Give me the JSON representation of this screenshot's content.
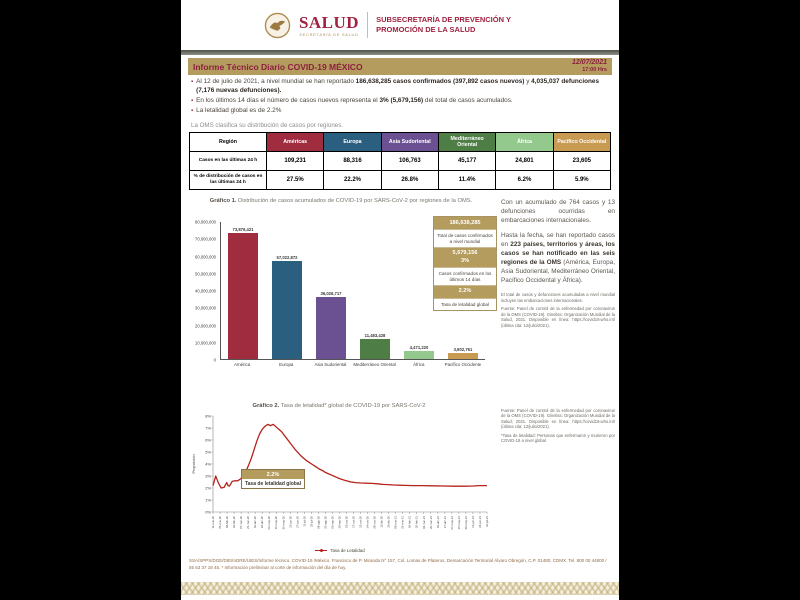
{
  "header": {
    "brand": "SALUD",
    "brand_sub": "SECRETARÍA DE SALUD",
    "dept": "SUBSECRETARÍA DE PREVENCIÓN Y PROMOCIÓN DE LA SALUD"
  },
  "title_bar": {
    "title": "Informe Técnico Diario COVID-19 MÉXICO",
    "date": "12/07/2021",
    "time": "17:00 Hrs"
  },
  "bullets": [
    [
      {
        "t": "Al 12 de julio de 2021, a nivel mundial se han reportado ",
        "b": false
      },
      {
        "t": "186,638,285 casos confirmados (397,892 casos nuevos)",
        "b": true
      },
      {
        "t": " y ",
        "b": false
      },
      {
        "t": "4,035,037 defunciones (7,176 nuevas defunciones).",
        "b": true
      }
    ],
    [
      {
        "t": "En los últimos 14 días el número de casos nuevos representa el ",
        "b": false
      },
      {
        "t": "3% (5,679,156)",
        "b": true
      },
      {
        "t": " del total de casos acumulados.",
        "b": false
      }
    ],
    [
      {
        "t": "La letalidad global es de 2.2%",
        "b": false
      }
    ]
  ],
  "table": {
    "intro": "La OMS clasifica su distribución de casos por regiones.",
    "columns": [
      {
        "label": "Región",
        "bg": "#ffffff",
        "fg": "#000000"
      },
      {
        "label": "Américas",
        "bg": "#a02c3f",
        "fg": "#ffffff"
      },
      {
        "label": "Europa",
        "bg": "#2a5f7f",
        "fg": "#ffffff"
      },
      {
        "label": "Asia Sudoriental",
        "bg": "#6b5092",
        "fg": "#ffffff"
      },
      {
        "label": "Mediterráneo Oriental",
        "bg": "#4e7d46",
        "fg": "#ffffff"
      },
      {
        "label": "África",
        "bg": "#94c98e",
        "fg": "#ffffff"
      },
      {
        "label": "Pacífico Occidental",
        "bg": "#c89a52",
        "fg": "#ffffff"
      }
    ],
    "rows": [
      {
        "label": "Casos en las últimas 24 h",
        "values": [
          "109,231",
          "88,316",
          "106,763",
          "45,177",
          "24,801",
          "23,605"
        ]
      },
      {
        "label": "% de distribución de casos en las últimas 24 h",
        "values": [
          "27.5%",
          "22.2%",
          "26.8%",
          "11.4%",
          "6.2%",
          "5.9%"
        ]
      }
    ]
  },
  "chart_data": [
    {
      "type": "bar",
      "title_label": "Gráfico 1.",
      "title": " Distribución de casos acumulados de COVID-19 por SARS-CoV-2 por regiones de la OMS.",
      "categories": [
        "América",
        "Europa",
        "Asia Sudoriental",
        "Mediterráneo Oriental",
        "África",
        "Pacífico Occidente"
      ],
      "values": [
        73876421,
        57022872,
        36026717,
        11483428,
        4471220,
        3802761
      ],
      "value_labels": [
        "73,876,421",
        "57,022,872",
        "36,026,717",
        "11,483,428",
        "4,471,220",
        "3,802,761"
      ],
      "colors": [
        "#a02c3f",
        "#2a5f7f",
        "#6b5092",
        "#4e7d46",
        "#94c98e",
        "#c89a52"
      ],
      "ylim": [
        0,
        80000000
      ],
      "yticks": [
        "80,000,000",
        "70,000,000",
        "60,000,000",
        "50,000,000",
        "40,000,000",
        "30,000,000",
        "20,000,000",
        "10,000,000",
        "0"
      ],
      "grid": false,
      "legend_position": "none"
    },
    {
      "type": "line",
      "title_label": "Gráfico 2.",
      "title": " Tasa de letalidad* global de COVID-19 por SARS-CoV-2",
      "ylabel": "Proporción",
      "ylim": [
        0,
        8
      ],
      "yticks": [
        "8%",
        "7%",
        "6%",
        "5%",
        "4%",
        "3%",
        "2%",
        "1%",
        "0%"
      ],
      "x_ticks": [
        "11-ene-20",
        "25-ene-20",
        "08-feb-20",
        "22-feb-20",
        "07-mar-20",
        "21-mar-20",
        "04-abr-20",
        "18-abr-20",
        "02-may-20",
        "16-may-20",
        "30-may-20",
        "13-jun-20",
        "27-jun-20",
        "11-jul-20",
        "25-jul-20",
        "08-ago-20",
        "22-ago-20",
        "05-sep-20",
        "19-sep-20",
        "03-oct-20",
        "17-oct-20",
        "31-oct-20",
        "14-nov-20",
        "28-nov-20",
        "12-dic-20",
        "26-dic-20",
        "09-ene-21",
        "23-ene-21",
        "06-feb-21",
        "20-feb-21",
        "06-mar-21",
        "20-mar-21",
        "03-abr-21",
        "17-abr-21",
        "01-may-21",
        "15-may-21",
        "29-may-21",
        "12-jun-21",
        "26-jun-21",
        "10-jul-21"
      ],
      "legend": "Tasa de Letalidad",
      "legend_position": "bottom",
      "grid": false,
      "annotation": {
        "value": "2.2%",
        "label": "Tasa de letalidad global"
      },
      "series": [
        {
          "name": "Tasa de Letalidad",
          "color": "#b5231c",
          "points": [
            [
              0,
              2.2
            ],
            [
              1,
              3.0
            ],
            [
              2,
              2.4
            ],
            [
              3,
              2.0
            ],
            [
              4,
              2.05
            ],
            [
              5,
              2.45
            ],
            [
              5.5,
              2.2
            ],
            [
              6,
              2.15
            ],
            [
              7,
              2.55
            ],
            [
              8,
              2.6
            ],
            [
              9,
              2.6
            ],
            [
              10,
              2.75
            ],
            [
              11,
              3.0
            ],
            [
              12,
              3.4
            ],
            [
              13,
              3.9
            ],
            [
              14,
              4.5
            ],
            [
              15,
              5.2
            ],
            [
              16,
              5.9
            ],
            [
              17,
              6.5
            ],
            [
              18,
              6.9
            ],
            [
              19,
              7.15
            ],
            [
              20,
              7.3
            ],
            [
              21,
              7.2
            ],
            [
              22,
              7.3
            ],
            [
              23,
              7.1
            ],
            [
              24,
              6.9
            ],
            [
              25,
              6.7
            ],
            [
              26,
              6.4
            ],
            [
              27,
              6.1
            ],
            [
              28,
              5.8
            ],
            [
              29,
              5.5
            ],
            [
              30,
              5.2
            ],
            [
              31,
              4.95
            ],
            [
              32,
              4.7
            ],
            [
              33,
              4.5
            ],
            [
              34,
              4.3
            ],
            [
              35,
              4.15
            ],
            [
              36,
              4.0
            ],
            [
              37,
              3.85
            ],
            [
              38,
              3.7
            ],
            [
              39,
              3.55
            ],
            [
              40,
              3.45
            ],
            [
              41,
              3.3
            ],
            [
              42,
              3.2
            ],
            [
              43,
              3.1
            ],
            [
              44,
              3.0
            ],
            [
              45,
              2.9
            ],
            [
              46,
              2.8
            ],
            [
              47,
              2.72
            ],
            [
              48,
              2.65
            ],
            [
              49,
              2.58
            ],
            [
              50,
              2.52
            ],
            [
              52,
              2.45
            ],
            [
              54,
              2.42
            ],
            [
              56,
              2.4
            ],
            [
              58,
              2.38
            ],
            [
              60,
              2.35
            ],
            [
              62,
              2.3
            ],
            [
              64,
              2.28
            ],
            [
              66,
              2.25
            ],
            [
              68,
              2.23
            ],
            [
              70,
              2.22
            ],
            [
              73,
              2.2
            ],
            [
              76,
              2.2
            ],
            [
              80,
              2.18
            ],
            [
              84,
              2.17
            ],
            [
              88,
              2.15
            ],
            [
              92,
              2.15
            ],
            [
              95,
              2.17
            ],
            [
              97,
              2.2
            ],
            [
              100,
              2.2
            ]
          ]
        }
      ]
    }
  ],
  "stat_box": {
    "rows": [
      {
        "style": "gold",
        "lines": [
          "186,638,285"
        ]
      },
      {
        "style": "white",
        "lines": [
          "Total de casos confirmados a nivel mundial"
        ]
      },
      {
        "style": "gold",
        "lines": [
          "5,679,156",
          "3%"
        ]
      },
      {
        "style": "white",
        "lines": [
          "Casos confirmados en los últimos 14 días"
        ]
      },
      {
        "style": "gold",
        "lines": [
          "2.2%"
        ]
      },
      {
        "style": "white",
        "lines": [
          "Tasa de letalidad global"
        ]
      }
    ]
  },
  "side_column": {
    "p1": "Con un acumulado de 764 casos y 13 defunciones ocurridas en embarcaciones internacionales.",
    "p2": [
      {
        "t": "Hasta la fecha, se han reportado casos en ",
        "b": false
      },
      {
        "t": "223 países, territorios y áreas, los casos se han notificado en las seis regiones de la OMS",
        "b": true
      },
      {
        "t": " (América, Europa, Asia Sudoriental, Mediterráneo Oriental, Pacífico Occidental y África).",
        "b": false
      }
    ],
    "fine1": "El total de casos y defunciones acumuladas a nivel mundial incluyen las embarcaciones internacionales.",
    "fine2": "Fuente: Panel de control de la enfermedad por coronavirus de la OMS (COVID-19). Ginebra: Organización Mundial de la Salud, 2021. Disponible en línea: https://covid19.who.int/ (última cita: 12/julio/2021)."
  },
  "chart2_side": {
    "p1": "Fuente: Panel de control de la enfermedad por coronavirus de la OMS (COVID-19). Ginebra: Organización Mundial de la Salud, 2021. Disponible en línea: https://covid19.who.int/ (última cita: 12/julio/2021).",
    "p2": "*Tasa de letalidad: Personas que enfermaron y murieron por COVID-19 a nivel global"
  },
  "footer": {
    "text": "SSA/SPPS/DGE/DIE/InDRE/UIES/Informe técnico. COVID-19 /México. Francisco de P. Miranda N° 157, Col. Lomas de Plateros, Demarcación Territorial Álvaro Obregón, C.P. 01480, CDMX. Tel. 800 00 44800 / 55 53 37 18 45. * Información preliminar al corte de información del día de hoy."
  }
}
